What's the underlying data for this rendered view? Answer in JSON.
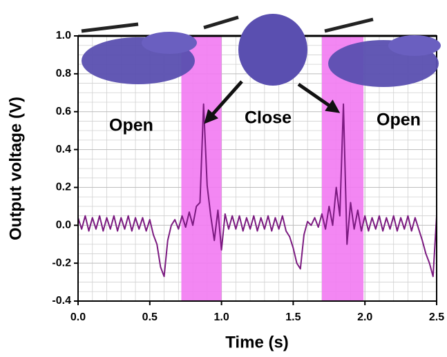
{
  "chart_data": {
    "type": "line",
    "xlabel": "Time (s)",
    "ylabel": "Output voltage (V)",
    "x": [
      0,
      0.025,
      0.05,
      0.075,
      0.1,
      0.125,
      0.15,
      0.175,
      0.2,
      0.225,
      0.25,
      0.275,
      0.3,
      0.325,
      0.35,
      0.375,
      0.4,
      0.425,
      0.45,
      0.475,
      0.5,
      0.525,
      0.55,
      0.575,
      0.6,
      0.625,
      0.65,
      0.675,
      0.7,
      0.725,
      0.75,
      0.775,
      0.8,
      0.825,
      0.85,
      0.875,
      0.9,
      0.925,
      0.95,
      0.975,
      1.0,
      1.025,
      1.05,
      1.075,
      1.1,
      1.125,
      1.15,
      1.175,
      1.2,
      1.225,
      1.25,
      1.275,
      1.3,
      1.325,
      1.35,
      1.375,
      1.4,
      1.425,
      1.45,
      1.475,
      1.5,
      1.525,
      1.55,
      1.575,
      1.6,
      1.625,
      1.65,
      1.675,
      1.7,
      1.725,
      1.75,
      1.775,
      1.8,
      1.825,
      1.85,
      1.875,
      1.9,
      1.925,
      1.95,
      1.975,
      2.0,
      2.025,
      2.05,
      2.075,
      2.1,
      2.125,
      2.15,
      2.175,
      2.2,
      2.225,
      2.25,
      2.275,
      2.3,
      2.325,
      2.35,
      2.375,
      2.4,
      2.425,
      2.45,
      2.475,
      2.5
    ],
    "series": [
      {
        "color": "#7b1a80",
        "values": [
          0.04,
          -0.02,
          0.05,
          -0.03,
          0.04,
          -0.02,
          0.05,
          -0.03,
          0.04,
          -0.02,
          0.05,
          -0.03,
          0.04,
          -0.02,
          0.05,
          -0.03,
          0.04,
          -0.02,
          0.04,
          -0.03,
          0.03,
          -0.05,
          -0.1,
          -0.22,
          -0.27,
          -0.08,
          0.0,
          0.03,
          -0.02,
          0.05,
          -0.01,
          0.07,
          0.0,
          0.1,
          0.12,
          0.64,
          0.21,
          0.05,
          -0.08,
          0.08,
          -0.13,
          0.06,
          -0.02,
          0.05,
          -0.02,
          0.05,
          -0.03,
          0.04,
          -0.02,
          0.05,
          -0.03,
          0.04,
          -0.02,
          0.05,
          -0.03,
          0.04,
          -0.02,
          0.05,
          -0.03,
          -0.06,
          -0.12,
          -0.2,
          -0.23,
          -0.05,
          0.02,
          0.0,
          0.04,
          -0.01,
          0.06,
          -0.02,
          0.1,
          0.0,
          0.2,
          0.05,
          0.64,
          -0.1,
          0.12,
          -0.02,
          0.08,
          -0.03,
          0.05,
          -0.03,
          0.04,
          -0.02,
          0.05,
          -0.03,
          0.04,
          -0.02,
          0.05,
          -0.03,
          0.04,
          -0.02,
          0.05,
          -0.03,
          0.04,
          -0.02,
          -0.08,
          -0.15,
          -0.2,
          -0.27,
          0.05
        ]
      }
    ],
    "shaded_regions": [
      [
        0.72,
        1.0
      ],
      [
        1.7,
        1.99
      ]
    ],
    "shade_color": "#f27af2",
    "annotations": [
      "Open",
      "Close",
      "Open"
    ],
    "xlim": [
      0,
      2.5
    ],
    "ylim": [
      -0.4,
      1.0
    ],
    "xticks": [
      {
        "value": 0,
        "label": "0.0"
      },
      0.5,
      {
        "value": 1,
        "label": "1.0"
      },
      1.5,
      {
        "value": 2,
        "label": "2.0"
      },
      2.5
    ],
    "yticks": [
      -0.4,
      -0.2,
      {
        "value": 0,
        "label": "0.0"
      },
      0.2,
      0.4,
      0.6,
      0.8,
      {
        "value": 1,
        "label": "1.0"
      }
    ],
    "grid": true
  }
}
